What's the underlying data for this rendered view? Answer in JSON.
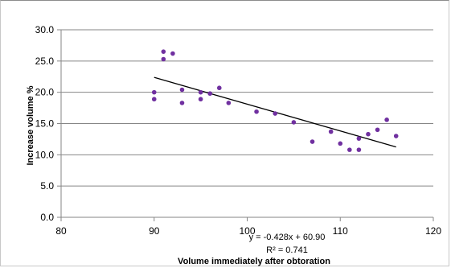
{
  "chart_data": {
    "type": "scatter",
    "title": "",
    "xlabel": "Volume immediately after obtoration",
    "ylabel": "Increase volume %",
    "xlim": [
      80,
      120
    ],
    "ylim": [
      0,
      30
    ],
    "x_ticks": [
      "80",
      "90",
      "100",
      "110",
      "120"
    ],
    "y_ticks": [
      "0.0",
      "5.0",
      "10.0",
      "15.0",
      "20.0",
      "25.0",
      "30.0"
    ],
    "grid": "horizontal",
    "legend": "none",
    "series": [
      {
        "color": "#7030a0",
        "points": [
          {
            "x": 90,
            "y": 20.0
          },
          {
            "x": 90,
            "y": 18.9
          },
          {
            "x": 91,
            "y": 26.5
          },
          {
            "x": 91,
            "y": 25.3
          },
          {
            "x": 92,
            "y": 26.2
          },
          {
            "x": 93,
            "y": 20.4
          },
          {
            "x": 93,
            "y": 18.3
          },
          {
            "x": 95,
            "y": 20.0
          },
          {
            "x": 95,
            "y": 18.9
          },
          {
            "x": 96,
            "y": 19.8
          },
          {
            "x": 97,
            "y": 20.7
          },
          {
            "x": 98,
            "y": 18.3
          },
          {
            "x": 101,
            "y": 16.9
          },
          {
            "x": 103,
            "y": 16.6
          },
          {
            "x": 105,
            "y": 15.2
          },
          {
            "x": 107,
            "y": 12.1
          },
          {
            "x": 109,
            "y": 13.7
          },
          {
            "x": 110,
            "y": 11.8
          },
          {
            "x": 111,
            "y": 10.8
          },
          {
            "x": 112,
            "y": 12.6
          },
          {
            "x": 112,
            "y": 10.8
          },
          {
            "x": 113,
            "y": 13.3
          },
          {
            "x": 114,
            "y": 14.0
          },
          {
            "x": 115,
            "y": 15.6
          },
          {
            "x": 116,
            "y": 13.0
          }
        ]
      }
    ],
    "trendline": {
      "type": "linear",
      "slope": -0.428,
      "intercept": 60.9,
      "x_range": [
        90,
        116
      ],
      "color": "#000000",
      "equation_label": "y = -0.428x + 60.90",
      "r2_label": "R² = 0.741"
    }
  }
}
